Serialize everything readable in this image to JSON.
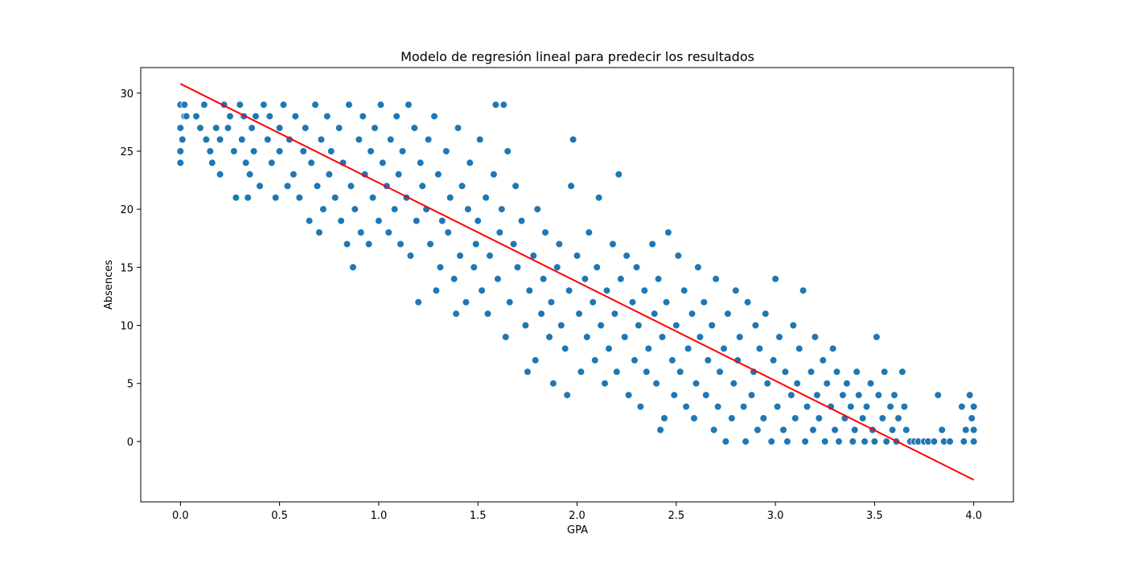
{
  "chart_data": {
    "type": "scatter",
    "title": "Modelo de regresión lineal para predecir los resultados",
    "xlabel": "GPA",
    "ylabel": "Absences",
    "xlim": [
      -0.2,
      4.2
    ],
    "ylim": [
      -5.2,
      32.2
    ],
    "x_ticks": [
      0.0,
      0.5,
      1.0,
      1.5,
      2.0,
      2.5,
      3.0,
      3.5,
      4.0
    ],
    "x_tick_labels": [
      "0.0",
      "0.5",
      "1.0",
      "1.5",
      "2.0",
      "2.5",
      "3.0",
      "3.5",
      "4.0"
    ],
    "y_ticks": [
      0,
      5,
      10,
      15,
      20,
      25,
      30
    ],
    "y_tick_labels": [
      "0",
      "5",
      "10",
      "15",
      "20",
      "25",
      "30"
    ],
    "grid": false,
    "legend": "none",
    "colors": {
      "points": "#1f77b4",
      "point_edge": "#ffffff",
      "regression_line": "#ff0000"
    },
    "series": [
      {
        "kind": "points",
        "points": [
          [
            0.0,
            29
          ],
          [
            0.02,
            28
          ],
          [
            0.0,
            27
          ],
          [
            0.01,
            26
          ],
          [
            0.0,
            25
          ],
          [
            0.0,
            24
          ],
          [
            0.02,
            29
          ],
          [
            0.03,
            28
          ],
          [
            0.08,
            28
          ],
          [
            0.1,
            27
          ],
          [
            0.12,
            29
          ],
          [
            0.13,
            26
          ],
          [
            0.15,
            25
          ],
          [
            0.16,
            24
          ],
          [
            0.18,
            27
          ],
          [
            0.2,
            23
          ],
          [
            0.2,
            26
          ],
          [
            0.22,
            29
          ],
          [
            0.24,
            27
          ],
          [
            0.25,
            28
          ],
          [
            0.27,
            25
          ],
          [
            0.28,
            21
          ],
          [
            0.3,
            29
          ],
          [
            0.31,
            26
          ],
          [
            0.32,
            28
          ],
          [
            0.33,
            24
          ],
          [
            0.34,
            21
          ],
          [
            0.35,
            23
          ],
          [
            0.36,
            27
          ],
          [
            0.37,
            25
          ],
          [
            0.38,
            28
          ],
          [
            0.4,
            22
          ],
          [
            0.42,
            29
          ],
          [
            0.44,
            26
          ],
          [
            0.45,
            28
          ],
          [
            0.46,
            24
          ],
          [
            0.48,
            21
          ],
          [
            0.5,
            27
          ],
          [
            0.5,
            25
          ],
          [
            0.52,
            29
          ],
          [
            0.54,
            22
          ],
          [
            0.55,
            26
          ],
          [
            0.57,
            23
          ],
          [
            0.58,
            28
          ],
          [
            0.6,
            21
          ],
          [
            0.62,
            25
          ],
          [
            0.63,
            27
          ],
          [
            0.65,
            19
          ],
          [
            0.66,
            24
          ],
          [
            0.68,
            29
          ],
          [
            0.69,
            22
          ],
          [
            0.7,
            18
          ],
          [
            0.71,
            26
          ],
          [
            0.72,
            20
          ],
          [
            0.74,
            28
          ],
          [
            0.75,
            23
          ],
          [
            0.76,
            25
          ],
          [
            0.78,
            21
          ],
          [
            0.8,
            27
          ],
          [
            0.81,
            19
          ],
          [
            0.82,
            24
          ],
          [
            0.84,
            17
          ],
          [
            0.85,
            29
          ],
          [
            0.86,
            22
          ],
          [
            0.87,
            15
          ],
          [
            0.88,
            20
          ],
          [
            0.9,
            26
          ],
          [
            0.91,
            18
          ],
          [
            0.92,
            28
          ],
          [
            0.93,
            23
          ],
          [
            0.95,
            17
          ],
          [
            0.96,
            25
          ],
          [
            0.97,
            21
          ],
          [
            0.98,
            27
          ],
          [
            1.0,
            19
          ],
          [
            1.01,
            29
          ],
          [
            1.02,
            24
          ],
          [
            1.04,
            22
          ],
          [
            1.05,
            18
          ],
          [
            1.06,
            26
          ],
          [
            1.08,
            20
          ],
          [
            1.09,
            28
          ],
          [
            1.1,
            23
          ],
          [
            1.11,
            17
          ],
          [
            1.12,
            25
          ],
          [
            1.14,
            21
          ],
          [
            1.15,
            29
          ],
          [
            1.16,
            16
          ],
          [
            1.18,
            27
          ],
          [
            1.19,
            19
          ],
          [
            1.2,
            12
          ],
          [
            1.21,
            24
          ],
          [
            1.22,
            22
          ],
          [
            1.24,
            20
          ],
          [
            1.25,
            26
          ],
          [
            1.26,
            17
          ],
          [
            1.28,
            28
          ],
          [
            1.29,
            13
          ],
          [
            1.3,
            23
          ],
          [
            1.31,
            15
          ],
          [
            1.32,
            19
          ],
          [
            1.34,
            25
          ],
          [
            1.35,
            18
          ],
          [
            1.36,
            21
          ],
          [
            1.38,
            14
          ],
          [
            1.39,
            11
          ],
          [
            1.4,
            27
          ],
          [
            1.41,
            16
          ],
          [
            1.42,
            22
          ],
          [
            1.44,
            12
          ],
          [
            1.45,
            20
          ],
          [
            1.46,
            24
          ],
          [
            1.48,
            15
          ],
          [
            1.49,
            17
          ],
          [
            1.5,
            19
          ],
          [
            1.51,
            26
          ],
          [
            1.52,
            13
          ],
          [
            1.54,
            21
          ],
          [
            1.55,
            11
          ],
          [
            1.56,
            16
          ],
          [
            1.58,
            23
          ],
          [
            1.59,
            29
          ],
          [
            1.6,
            14
          ],
          [
            1.61,
            18
          ],
          [
            1.62,
            20
          ],
          [
            1.63,
            29
          ],
          [
            1.64,
            9
          ],
          [
            1.65,
            25
          ],
          [
            1.66,
            12
          ],
          [
            1.68,
            17
          ],
          [
            1.69,
            22
          ],
          [
            1.7,
            15
          ],
          [
            1.72,
            19
          ],
          [
            1.74,
            10
          ],
          [
            1.75,
            6
          ],
          [
            1.76,
            13
          ],
          [
            1.78,
            16
          ],
          [
            1.79,
            7
          ],
          [
            1.8,
            20
          ],
          [
            1.82,
            11
          ],
          [
            1.83,
            14
          ],
          [
            1.84,
            18
          ],
          [
            1.86,
            9
          ],
          [
            1.87,
            12
          ],
          [
            1.88,
            5
          ],
          [
            1.9,
            15
          ],
          [
            1.91,
            17
          ],
          [
            1.92,
            10
          ],
          [
            1.94,
            8
          ],
          [
            1.95,
            4
          ],
          [
            1.96,
            13
          ],
          [
            1.97,
            22
          ],
          [
            1.98,
            26
          ],
          [
            2.0,
            16
          ],
          [
            2.01,
            11
          ],
          [
            2.02,
            6
          ],
          [
            2.04,
            14
          ],
          [
            2.05,
            9
          ],
          [
            2.06,
            18
          ],
          [
            2.08,
            12
          ],
          [
            2.09,
            7
          ],
          [
            2.1,
            15
          ],
          [
            2.11,
            21
          ],
          [
            2.12,
            10
          ],
          [
            2.14,
            5
          ],
          [
            2.15,
            13
          ],
          [
            2.16,
            8
          ],
          [
            2.18,
            17
          ],
          [
            2.19,
            11
          ],
          [
            2.2,
            6
          ],
          [
            2.21,
            23
          ],
          [
            2.22,
            14
          ],
          [
            2.24,
            9
          ],
          [
            2.25,
            16
          ],
          [
            2.26,
            4
          ],
          [
            2.28,
            12
          ],
          [
            2.29,
            7
          ],
          [
            2.3,
            15
          ],
          [
            2.31,
            10
          ],
          [
            2.32,
            3
          ],
          [
            2.34,
            13
          ],
          [
            2.35,
            6
          ],
          [
            2.36,
            8
          ],
          [
            2.38,
            17
          ],
          [
            2.39,
            11
          ],
          [
            2.4,
            5
          ],
          [
            2.41,
            14
          ],
          [
            2.42,
            1
          ],
          [
            2.43,
            9
          ],
          [
            2.44,
            2
          ],
          [
            2.45,
            12
          ],
          [
            2.46,
            18
          ],
          [
            2.48,
            7
          ],
          [
            2.49,
            4
          ],
          [
            2.5,
            10
          ],
          [
            2.51,
            16
          ],
          [
            2.52,
            6
          ],
          [
            2.54,
            13
          ],
          [
            2.55,
            3
          ],
          [
            2.56,
            8
          ],
          [
            2.58,
            11
          ],
          [
            2.59,
            2
          ],
          [
            2.6,
            5
          ],
          [
            2.61,
            15
          ],
          [
            2.62,
            9
          ],
          [
            2.64,
            12
          ],
          [
            2.65,
            4
          ],
          [
            2.66,
            7
          ],
          [
            2.68,
            10
          ],
          [
            2.69,
            1
          ],
          [
            2.7,
            14
          ],
          [
            2.71,
            3
          ],
          [
            2.72,
            6
          ],
          [
            2.74,
            8
          ],
          [
            2.75,
            0
          ],
          [
            2.76,
            11
          ],
          [
            2.78,
            2
          ],
          [
            2.79,
            5
          ],
          [
            2.8,
            13
          ],
          [
            2.81,
            7
          ],
          [
            2.82,
            9
          ],
          [
            2.84,
            3
          ],
          [
            2.85,
            0
          ],
          [
            2.86,
            12
          ],
          [
            2.88,
            4
          ],
          [
            2.89,
            6
          ],
          [
            2.9,
            10
          ],
          [
            2.91,
            1
          ],
          [
            2.92,
            8
          ],
          [
            2.94,
            2
          ],
          [
            2.95,
            11
          ],
          [
            2.96,
            5
          ],
          [
            2.98,
            0
          ],
          [
            2.99,
            7
          ],
          [
            3.0,
            14
          ],
          [
            3.01,
            3
          ],
          [
            3.02,
            9
          ],
          [
            3.04,
            1
          ],
          [
            3.05,
            6
          ],
          [
            3.06,
            0
          ],
          [
            3.08,
            4
          ],
          [
            3.09,
            10
          ],
          [
            3.1,
            2
          ],
          [
            3.11,
            5
          ],
          [
            3.12,
            8
          ],
          [
            3.14,
            13
          ],
          [
            3.15,
            0
          ],
          [
            3.16,
            3
          ],
          [
            3.18,
            6
          ],
          [
            3.19,
            1
          ],
          [
            3.2,
            9
          ],
          [
            3.21,
            4
          ],
          [
            3.22,
            2
          ],
          [
            3.24,
            7
          ],
          [
            3.25,
            0
          ],
          [
            3.26,
            5
          ],
          [
            3.28,
            3
          ],
          [
            3.29,
            8
          ],
          [
            3.3,
            1
          ],
          [
            3.31,
            6
          ],
          [
            3.32,
            0
          ],
          [
            3.34,
            4
          ],
          [
            3.35,
            2
          ],
          [
            3.36,
            5
          ],
          [
            3.38,
            3
          ],
          [
            3.39,
            0
          ],
          [
            3.4,
            1
          ],
          [
            3.41,
            6
          ],
          [
            3.42,
            4
          ],
          [
            3.44,
            2
          ],
          [
            3.45,
            0
          ],
          [
            3.46,
            3
          ],
          [
            3.48,
            5
          ],
          [
            3.49,
            1
          ],
          [
            3.5,
            0
          ],
          [
            3.51,
            9
          ],
          [
            3.52,
            4
          ],
          [
            3.54,
            2
          ],
          [
            3.55,
            6
          ],
          [
            3.56,
            0
          ],
          [
            3.58,
            3
          ],
          [
            3.59,
            1
          ],
          [
            3.6,
            4
          ],
          [
            3.61,
            0
          ],
          [
            3.62,
            2
          ],
          [
            3.64,
            6
          ],
          [
            3.65,
            3
          ],
          [
            3.66,
            1
          ],
          [
            3.68,
            0
          ],
          [
            3.7,
            0
          ],
          [
            3.72,
            0
          ],
          [
            3.75,
            0
          ],
          [
            3.77,
            0
          ],
          [
            3.8,
            0
          ],
          [
            3.82,
            4
          ],
          [
            3.84,
            1
          ],
          [
            3.85,
            0
          ],
          [
            3.88,
            0
          ],
          [
            3.94,
            3
          ],
          [
            3.95,
            0
          ],
          [
            3.96,
            1
          ],
          [
            3.98,
            4
          ],
          [
            3.99,
            2
          ],
          [
            4.0,
            0
          ],
          [
            4.0,
            1
          ],
          [
            4.0,
            3
          ]
        ]
      },
      {
        "kind": "regression-line",
        "x": [
          0.0,
          4.0
        ],
        "y": [
          30.8,
          -3.3
        ]
      }
    ]
  }
}
